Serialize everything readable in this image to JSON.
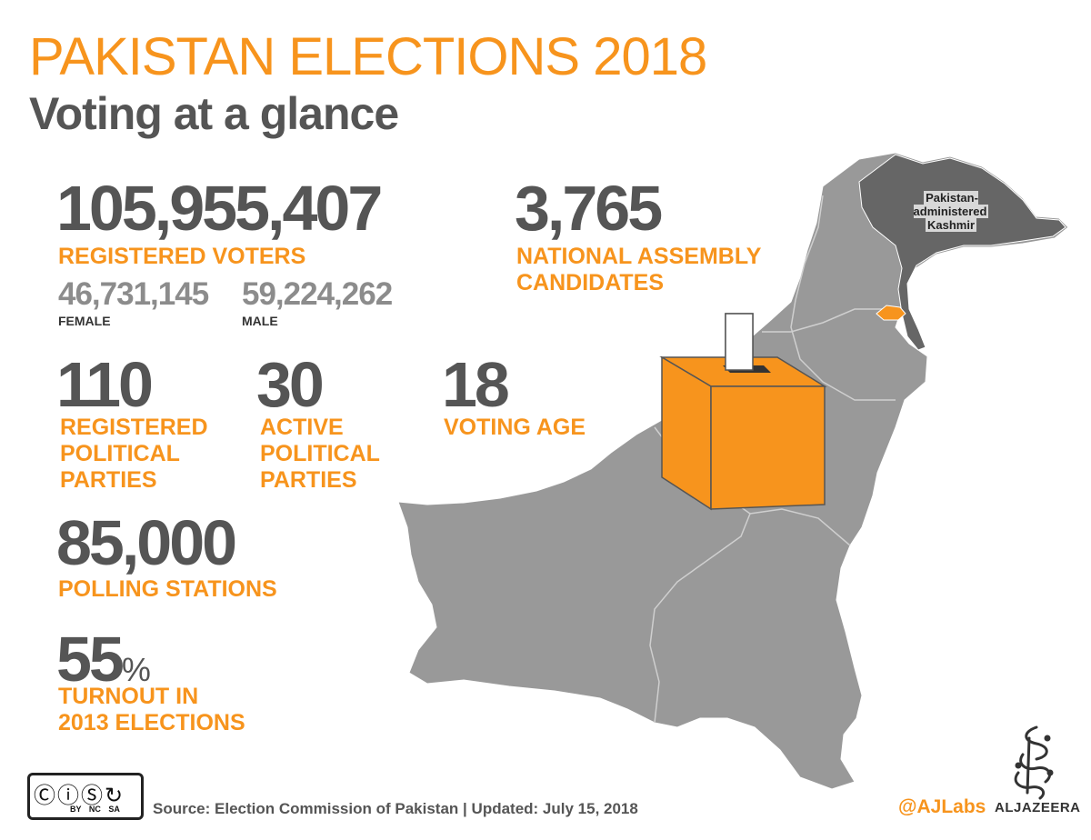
{
  "header": {
    "title": "PAKISTAN ELECTIONS 2018",
    "subtitle": "Voting at a glance"
  },
  "stats": {
    "registered_voters": {
      "value": "105,955,407",
      "label": "REGISTERED VOTERS"
    },
    "female": {
      "value": "46,731,145",
      "label": "FEMALE"
    },
    "male": {
      "value": "59,224,262",
      "label": "MALE"
    },
    "na_candidates": {
      "value": "3,765",
      "label_line1": "NATIONAL ASSEMBLY",
      "label_line2": "CANDIDATES"
    },
    "registered_parties": {
      "value": "110",
      "label_line1": "REGISTERED",
      "label_line2": "POLITICAL",
      "label_line3": "PARTIES"
    },
    "active_parties": {
      "value": "30",
      "label_line1": "ACTIVE",
      "label_line2": "POLITICAL",
      "label_line3": "PARTIES"
    },
    "voting_age": {
      "value": "18",
      "label": "VOTING AGE"
    },
    "polling_stations": {
      "value": "85,000",
      "label": "POLLING STATIONS"
    },
    "turnout": {
      "value": "55",
      "unit": "%",
      "label_line1": "TURNOUT IN",
      "label_line2": "2013 ELECTIONS"
    }
  },
  "map": {
    "kashmir_label_line1": "Pakistan-administered",
    "kashmir_label_line2": "Kashmir",
    "colors": {
      "land": "#999999",
      "kashmir": "#666666",
      "highlight": "#f7941d",
      "border": "#cfcfcf"
    }
  },
  "footer": {
    "source": "Source: Election Commission of Pakistan",
    "separator": "|",
    "updated": "Updated: July 15, 2018",
    "credit": "@AJLabs",
    "brand": "ALJAZEERA",
    "license_tags": "BY NC SA"
  },
  "colors": {
    "accent": "#f7941d",
    "dark_text": "#555555",
    "muted_text": "#8c8c8c"
  }
}
